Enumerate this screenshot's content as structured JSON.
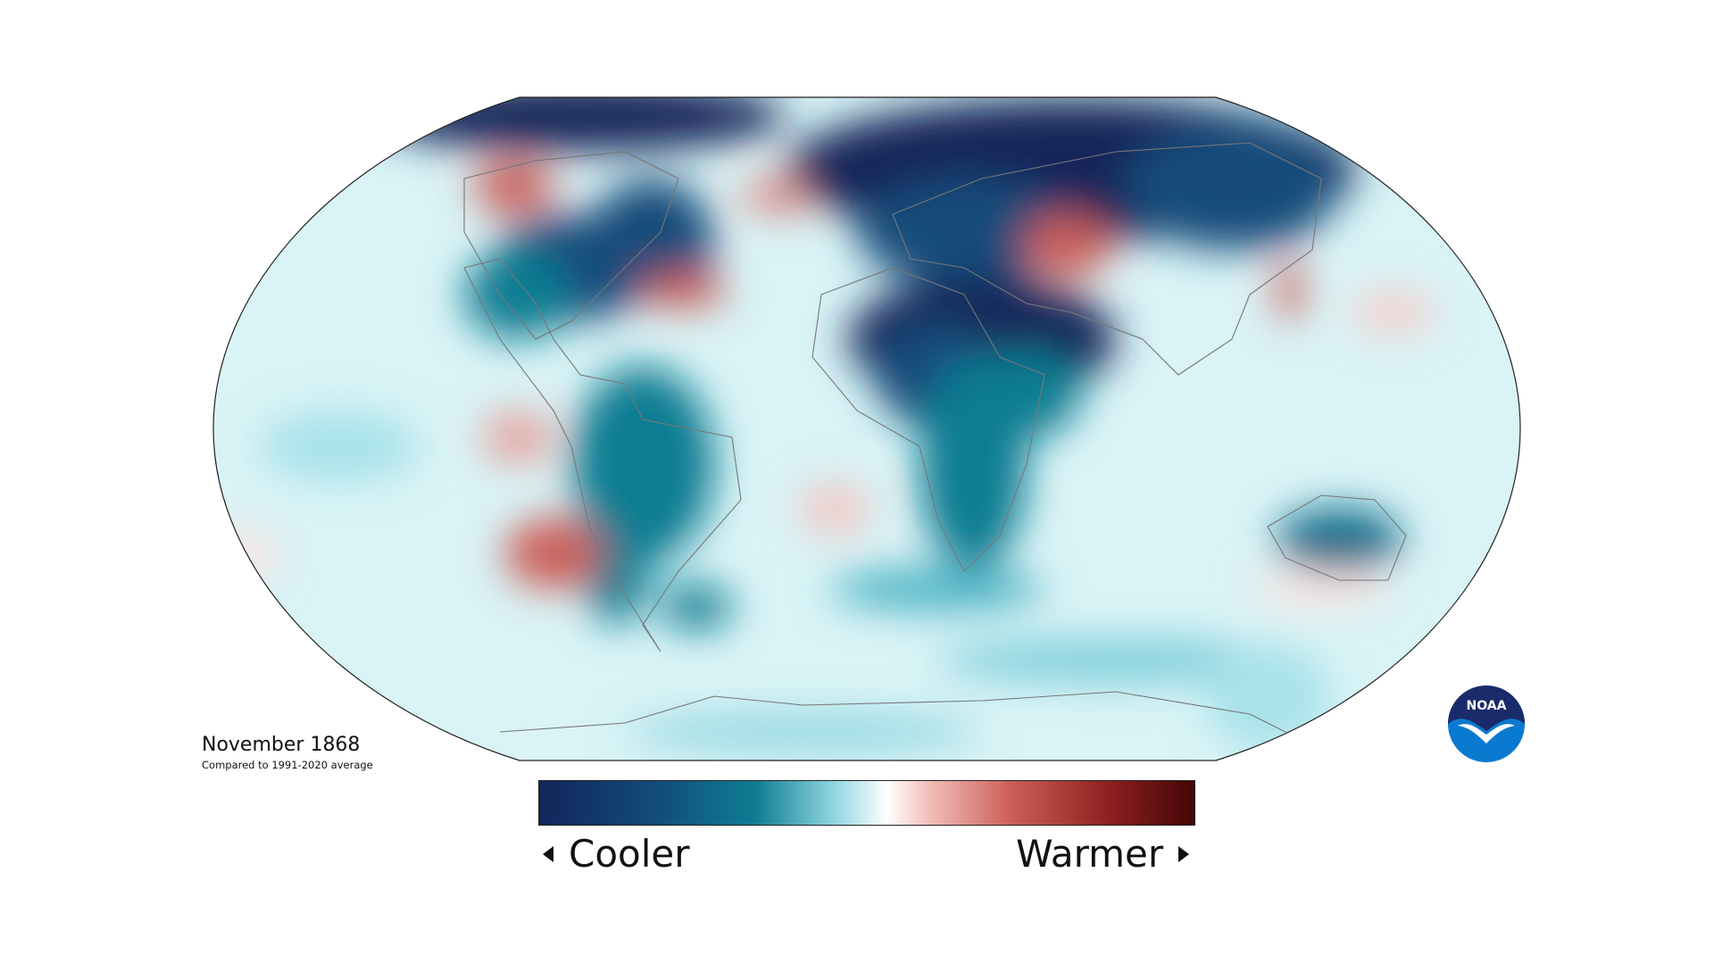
{
  "caption": {
    "title": "November 1868",
    "subtitle": "Compared to 1991-2020 average"
  },
  "legend": {
    "cool_label": "Cooler",
    "warm_label": "Warmer",
    "colors": [
      "#12255a",
      "#124c7a",
      "#0f7d93",
      "#8fd6e0",
      "#ffffff",
      "#f2b9b5",
      "#cc5f58",
      "#8e1f1f",
      "#420607"
    ]
  },
  "logo": {
    "text": "NOAA",
    "colors": {
      "top": "#1a2b6b",
      "bottom": "#0a7ad0"
    }
  },
  "map": {
    "type": "temperature anomaly map",
    "projection": "Robinson",
    "background": "#d9f3f6"
  }
}
